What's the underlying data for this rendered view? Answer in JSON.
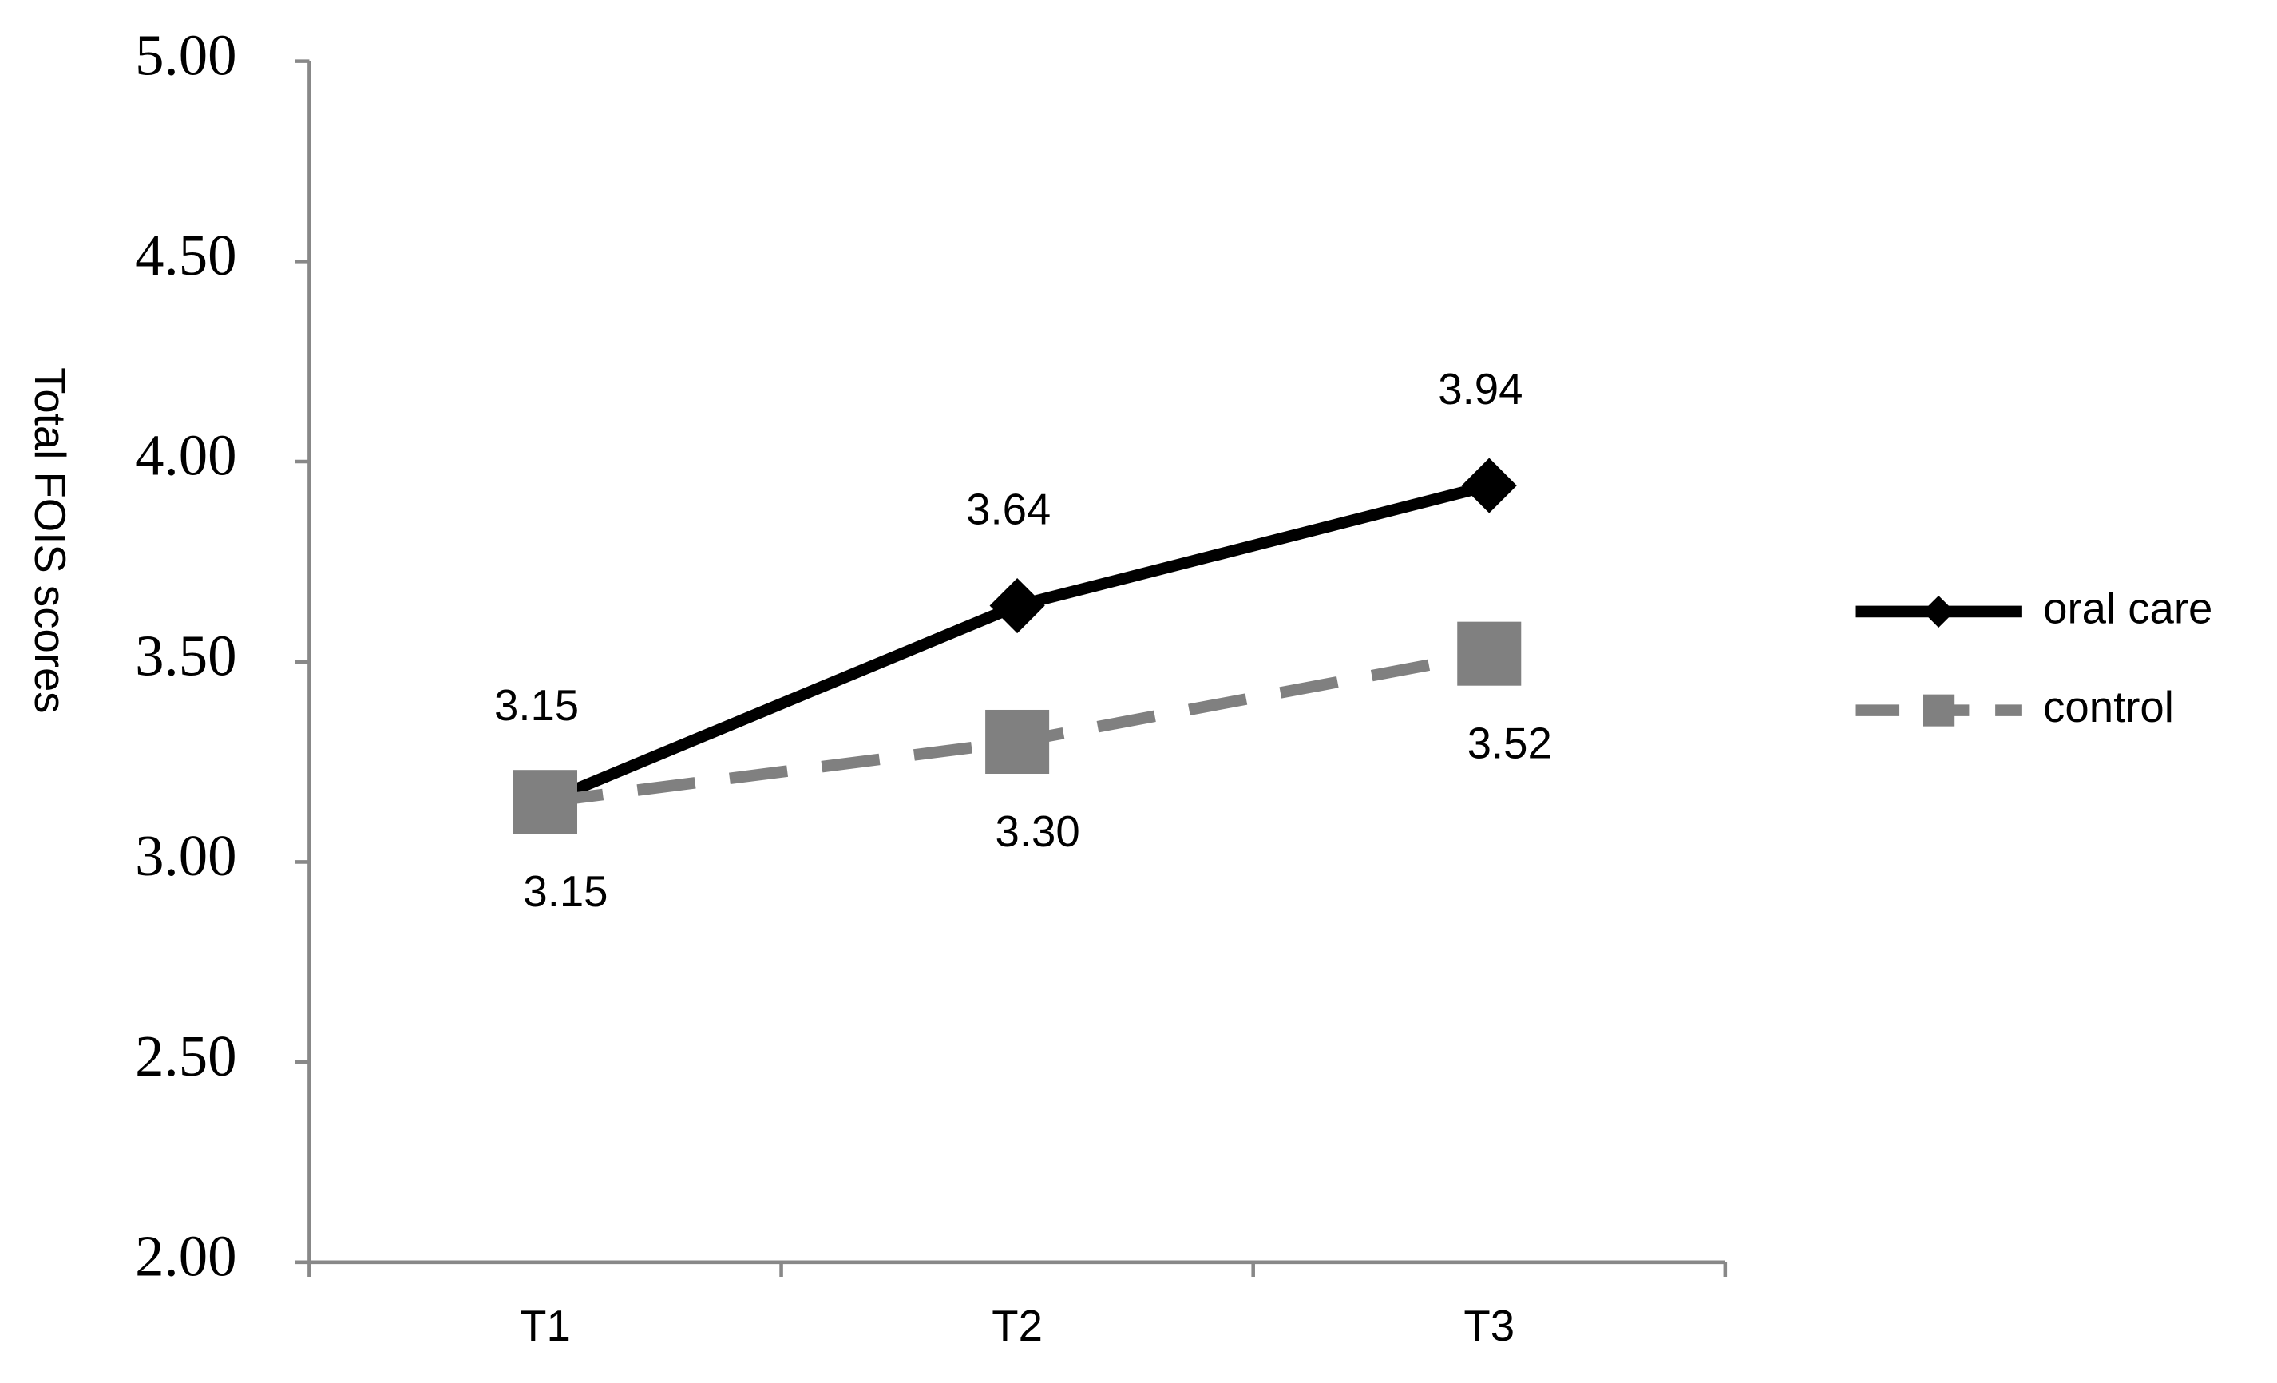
{
  "chart_data": {
    "type": "line",
    "y_label": "Total FOIS scores",
    "categories": [
      "T1",
      "T2",
      "T3"
    ],
    "series": [
      {
        "name": "oral care",
        "color": "#000000",
        "marker": "diamond",
        "dash": false,
        "values": [
          3.15,
          3.64,
          3.94
        ]
      },
      {
        "name": "control",
        "color": "#808080",
        "marker": "square",
        "dash": true,
        "values": [
          3.15,
          3.3,
          3.52
        ],
        "value_labels": [
          "3.15",
          "3.30",
          "3.52"
        ]
      }
    ],
    "ylim": [
      2,
      5
    ],
    "yticks": [
      {
        "value": 2,
        "label": "2.00"
      },
      {
        "value": 2.5,
        "label": "2.50"
      },
      {
        "value": 3,
        "label": "3.00"
      },
      {
        "value": 3.5,
        "label": "3.50"
      },
      {
        "value": 4,
        "label": "4.00"
      },
      {
        "value": 4.5,
        "label": "4.50"
      },
      {
        "value": 5,
        "label": "5.00"
      }
    ],
    "legend": "right"
  }
}
